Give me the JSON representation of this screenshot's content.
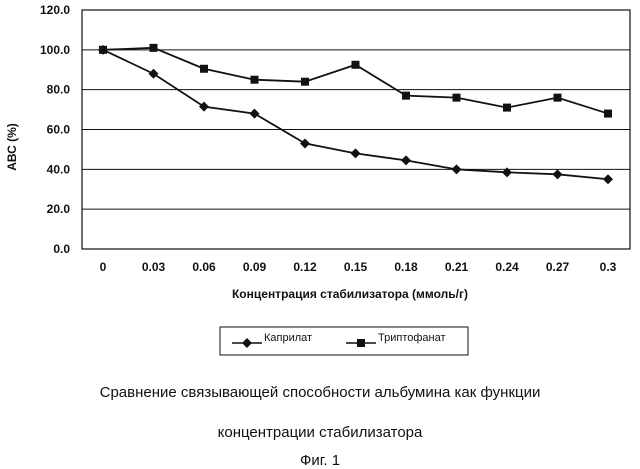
{
  "chart_data": {
    "type": "line",
    "xlabel": "Концентрация стабилизатора (ммоль/г)",
    "ylabel": "АВС (%)",
    "categories": [
      "0",
      "0.03",
      "0.06",
      "0.09",
      "0.12",
      "0.15",
      "0.18",
      "0.21",
      "0.24",
      "0.27",
      "0.3"
    ],
    "ylim": [
      0,
      120
    ],
    "yticks": [
      "0.0",
      "20.0",
      "40.0",
      "60.0",
      "80.0",
      "100.0",
      "120.0"
    ],
    "grid": true,
    "legend_position": "bottom",
    "series": [
      {
        "name": "Каприлат",
        "marker": "diamond",
        "values": [
          100,
          88,
          71.5,
          68,
          53,
          48,
          44.5,
          40,
          38.5,
          37.5,
          35
        ]
      },
      {
        "name": "Триптофанат",
        "marker": "square",
        "values": [
          100,
          101,
          90.5,
          85,
          84,
          92.5,
          77,
          76,
          71,
          76,
          68
        ]
      }
    ]
  },
  "caption": {
    "line1": "Сравнение связывающей способности альбумина как функции",
    "line2": "концентрации стабилизатора",
    "figure": "Фиг. 1"
  }
}
